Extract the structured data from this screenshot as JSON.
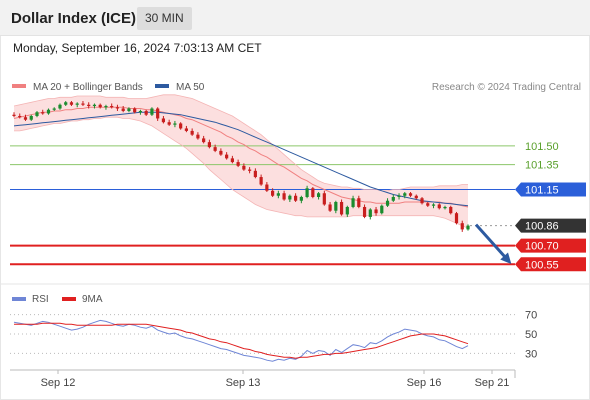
{
  "header": {
    "title": "Dollar Index (ICE)",
    "timeframe": "30 MIN"
  },
  "datetime": "Monday, September 16, 2024 7:03:13 AM CET",
  "legend": [
    {
      "label": "MA 20 + Bollinger Bands",
      "color": "#f08080"
    },
    {
      "label": "MA 50",
      "color": "#2d5aa0"
    }
  ],
  "credit": "Research © 2024 Trading Central",
  "rsi_legend": [
    {
      "label": "RSI",
      "color": "#6f86d6"
    },
    {
      "label": "9MA",
      "color": "#e02020"
    }
  ],
  "colors": {
    "bullish": "#1a8c2e",
    "bearish": "#c81e1e",
    "resistance": "#8cc66a",
    "pivot": "#2b5fd9",
    "support": "#e02020",
    "last": "#333333",
    "arrow": "#2d5aa0",
    "band": "#fbd9d9"
  },
  "chart_data": [
    {
      "type": "candlestick",
      "title": "",
      "ylim": [
        100.4,
        101.82
      ],
      "x_labels": [
        "Sep 12",
        "Sep 13",
        "Sep 16",
        "Sep 21"
      ],
      "levels": [
        {
          "value": 101.5,
          "label": "101.50",
          "kind": "resistance"
        },
        {
          "value": 101.35,
          "label": "101.35",
          "kind": "resistance"
        },
        {
          "value": 101.15,
          "label": "101.15",
          "kind": "pivot"
        },
        {
          "value": 100.86,
          "label": "100.86",
          "kind": "last"
        },
        {
          "value": 100.7,
          "label": "100.70",
          "kind": "support"
        },
        {
          "value": 100.55,
          "label": "100.55",
          "kind": "support"
        }
      ],
      "last_price": 100.86,
      "ohlc": [
        [
          101.75,
          101.77,
          101.73,
          101.74
        ],
        [
          101.74,
          101.76,
          101.72,
          101.73
        ],
        [
          101.73,
          101.75,
          101.7,
          101.71
        ],
        [
          101.71,
          101.75,
          101.7,
          101.74
        ],
        [
          101.74,
          101.78,
          101.73,
          101.77
        ],
        [
          101.77,
          101.79,
          101.75,
          101.76
        ],
        [
          101.76,
          101.8,
          101.75,
          101.79
        ],
        [
          101.79,
          101.81,
          101.78,
          101.8
        ],
        [
          101.8,
          101.84,
          101.79,
          101.83
        ],
        [
          101.83,
          101.86,
          101.82,
          101.85
        ],
        [
          101.85,
          101.86,
          101.82,
          101.83
        ],
        [
          101.83,
          101.85,
          101.81,
          101.84
        ],
        [
          101.84,
          101.86,
          101.82,
          101.83
        ],
        [
          101.83,
          101.85,
          101.8,
          101.82
        ],
        [
          101.82,
          101.84,
          101.8,
          101.83
        ],
        [
          101.83,
          101.84,
          101.8,
          101.81
        ],
        [
          101.81,
          101.83,
          101.79,
          101.82
        ],
        [
          101.82,
          101.84,
          101.8,
          101.81
        ],
        [
          101.81,
          101.83,
          101.78,
          101.8
        ],
        [
          101.8,
          101.82,
          101.77,
          101.78
        ],
        [
          101.78,
          101.81,
          101.77,
          101.8
        ],
        [
          101.8,
          101.81,
          101.76,
          101.77
        ],
        [
          101.77,
          101.79,
          101.75,
          101.78
        ],
        [
          101.78,
          101.79,
          101.74,
          101.75
        ],
        [
          101.75,
          101.81,
          101.74,
          101.8
        ],
        [
          101.8,
          101.81,
          101.7,
          101.72
        ],
        [
          101.72,
          101.74,
          101.68,
          101.69
        ],
        [
          101.69,
          101.71,
          101.66,
          101.67
        ],
        [
          101.67,
          101.7,
          101.65,
          101.68
        ],
        [
          101.68,
          101.69,
          101.63,
          101.64
        ],
        [
          101.64,
          101.66,
          101.61,
          101.62
        ],
        [
          101.62,
          101.64,
          101.58,
          101.59
        ],
        [
          101.59,
          101.61,
          101.55,
          101.56
        ],
        [
          101.56,
          101.58,
          101.52,
          101.53
        ],
        [
          101.53,
          101.55,
          101.48,
          101.49
        ],
        [
          101.49,
          101.51,
          101.45,
          101.46
        ],
        [
          101.46,
          101.48,
          101.42,
          101.43
        ],
        [
          101.43,
          101.45,
          101.39,
          101.4
        ],
        [
          101.4,
          101.42,
          101.36,
          101.37
        ],
        [
          101.37,
          101.39,
          101.33,
          101.34
        ],
        [
          101.34,
          101.36,
          101.3,
          101.31
        ],
        [
          101.31,
          101.33,
          101.28,
          101.3
        ],
        [
          101.3,
          101.32,
          101.24,
          101.25
        ],
        [
          101.25,
          101.27,
          101.18,
          101.19
        ],
        [
          101.19,
          101.21,
          101.13,
          101.14
        ],
        [
          101.14,
          101.16,
          101.09,
          101.1
        ],
        [
          101.1,
          101.14,
          101.08,
          101.12
        ],
        [
          101.12,
          101.14,
          101.06,
          101.07
        ],
        [
          101.07,
          101.11,
          101.05,
          101.1
        ],
        [
          101.1,
          101.12,
          101.05,
          101.06
        ],
        [
          101.06,
          101.1,
          101.04,
          101.09
        ],
        [
          101.09,
          101.18,
          101.08,
          101.16
        ],
        [
          101.16,
          101.17,
          101.08,
          101.09
        ],
        [
          101.09,
          101.13,
          101.07,
          101.12
        ],
        [
          101.12,
          101.14,
          101.02,
          101.03
        ],
        [
          101.03,
          101.05,
          100.97,
          100.98
        ],
        [
          100.98,
          101.06,
          100.96,
          101.05
        ],
        [
          101.05,
          101.07,
          100.94,
          100.95
        ],
        [
          100.95,
          101.02,
          100.93,
          101.01
        ],
        [
          101.01,
          101.1,
          101.0,
          101.08
        ],
        [
          101.08,
          101.1,
          101.0,
          101.01
        ],
        [
          101.01,
          101.03,
          100.92,
          100.93
        ],
        [
          100.93,
          101.0,
          100.91,
          100.99
        ],
        [
          100.99,
          101.01,
          100.94,
          100.96
        ],
        [
          100.96,
          101.03,
          100.95,
          101.02
        ],
        [
          101.02,
          101.08,
          101.01,
          101.06
        ],
        [
          101.06,
          101.11,
          101.05,
          101.09
        ],
        [
          101.09,
          101.12,
          101.07,
          101.1
        ],
        [
          101.1,
          101.13,
          101.08,
          101.12
        ],
        [
          101.12,
          101.13,
          101.09,
          101.1
        ],
        [
          101.1,
          101.11,
          101.07,
          101.08
        ],
        [
          101.08,
          101.09,
          101.03,
          101.04
        ],
        [
          101.04,
          101.05,
          101.01,
          101.02
        ],
        [
          101.02,
          101.04,
          101.0,
          101.03
        ],
        [
          101.03,
          101.04,
          100.99,
          101.0
        ],
        [
          101.0,
          101.02,
          100.99,
          101.01
        ],
        [
          101.01,
          101.02,
          100.95,
          100.96
        ],
        [
          100.96,
          100.97,
          100.87,
          100.88
        ],
        [
          100.88,
          100.9,
          100.81,
          100.83
        ],
        [
          100.83,
          100.87,
          100.82,
          100.86
        ]
      ],
      "ma20": [
        101.72,
        101.73,
        101.74,
        101.75,
        101.76,
        101.77,
        101.77,
        101.78,
        101.78,
        101.79,
        101.79,
        101.8,
        101.8,
        101.81,
        101.81,
        101.81,
        101.81,
        101.81,
        101.81,
        101.81,
        101.8,
        101.8,
        101.8,
        101.79,
        101.79,
        101.78,
        101.77,
        101.76,
        101.75,
        101.74,
        101.72,
        101.71,
        101.69,
        101.67,
        101.65,
        101.63,
        101.61,
        101.58,
        101.56,
        101.53,
        101.51,
        101.48,
        101.46,
        101.43,
        101.41,
        101.38,
        101.35,
        101.33,
        101.3,
        101.27,
        101.24,
        101.22,
        101.19,
        101.17,
        101.15,
        101.13,
        101.11,
        101.09,
        101.08,
        101.07,
        101.06,
        101.05,
        101.05,
        101.04,
        101.04,
        101.04,
        101.04,
        101.04,
        101.05,
        101.05,
        101.05,
        101.05,
        101.05,
        101.05,
        101.05,
        101.04,
        101.04,
        101.03,
        101.02,
        101.01
      ],
      "bb_upper": [
        101.82,
        101.83,
        101.84,
        101.85,
        101.86,
        101.87,
        101.88,
        101.88,
        101.89,
        101.89,
        101.89,
        101.9,
        101.9,
        101.9,
        101.9,
        101.9,
        101.89,
        101.89,
        101.89,
        101.89,
        101.88,
        101.88,
        101.88,
        101.88,
        101.89,
        101.9,
        101.91,
        101.91,
        101.91,
        101.9,
        101.89,
        101.88,
        101.86,
        101.84,
        101.82,
        101.8,
        101.78,
        101.76,
        101.74,
        101.71,
        101.68,
        101.65,
        101.62,
        101.59,
        101.55,
        101.51,
        101.47,
        101.43,
        101.39,
        101.35,
        101.31,
        101.28,
        101.25,
        101.22,
        101.2,
        101.19,
        101.18,
        101.17,
        101.17,
        101.16,
        101.16,
        101.15,
        101.15,
        101.15,
        101.14,
        101.14,
        101.15,
        101.15,
        101.16,
        101.17,
        101.17,
        101.17,
        101.17,
        101.17,
        101.18,
        101.18,
        101.18,
        101.18,
        101.19,
        101.19
      ],
      "bb_lower": [
        101.62,
        101.62,
        101.63,
        101.64,
        101.65,
        101.66,
        101.67,
        101.68,
        101.68,
        101.69,
        101.7,
        101.7,
        101.71,
        101.71,
        101.72,
        101.72,
        101.73,
        101.73,
        101.73,
        101.72,
        101.72,
        101.71,
        101.7,
        101.68,
        101.66,
        101.63,
        101.6,
        101.57,
        101.54,
        101.51,
        101.48,
        101.44,
        101.4,
        101.36,
        101.31,
        101.27,
        101.23,
        101.19,
        101.15,
        101.12,
        101.09,
        101.06,
        101.03,
        101.01,
        100.99,
        100.98,
        100.97,
        100.96,
        100.95,
        100.94,
        100.94,
        100.93,
        100.93,
        100.93,
        100.93,
        100.93,
        100.93,
        100.93,
        100.93,
        100.94,
        100.94,
        100.94,
        100.94,
        100.94,
        100.94,
        100.94,
        100.94,
        100.94,
        100.94,
        100.94,
        100.94,
        100.94,
        100.94,
        100.94,
        100.93,
        100.92,
        100.9,
        100.88,
        100.86,
        100.84
      ],
      "ma50": [
        101.66,
        101.665,
        101.67,
        101.675,
        101.68,
        101.685,
        101.69,
        101.695,
        101.7,
        101.705,
        101.71,
        101.715,
        101.72,
        101.725,
        101.73,
        101.735,
        101.74,
        101.745,
        101.75,
        101.755,
        101.76,
        101.765,
        101.77,
        101.77,
        101.77,
        101.77,
        101.765,
        101.76,
        101.755,
        101.75,
        101.74,
        101.73,
        101.72,
        101.71,
        101.7,
        101.69,
        101.675,
        101.66,
        101.645,
        101.63,
        101.61,
        101.59,
        101.57,
        101.55,
        101.53,
        101.51,
        101.49,
        101.47,
        101.45,
        101.43,
        101.41,
        101.39,
        101.37,
        101.35,
        101.33,
        101.31,
        101.29,
        101.27,
        101.25,
        101.23,
        101.21,
        101.19,
        101.17,
        101.155,
        101.14,
        101.125,
        101.11,
        101.1,
        101.09,
        101.08,
        101.07,
        101.06,
        101.055,
        101.05,
        101.045,
        101.04,
        101.035,
        101.03,
        101.025,
        101.02
      ],
      "forecast_arrow": {
        "from": 100.86,
        "to": 100.55
      }
    },
    {
      "type": "line",
      "title": "",
      "ylim": [
        15,
        85
      ],
      "yticks": [
        70,
        50,
        30
      ],
      "series": [
        {
          "name": "RSI",
          "values": [
            62,
            61,
            60,
            59,
            61,
            63,
            62,
            60,
            58,
            56,
            54,
            55,
            57,
            60,
            62,
            64,
            63,
            61,
            59,
            58,
            60,
            59,
            57,
            56,
            58,
            54,
            52,
            50,
            51,
            48,
            46,
            45,
            43,
            41,
            39,
            37,
            35,
            34,
            32,
            30,
            28,
            27,
            26,
            25,
            23,
            22,
            24,
            23,
            25,
            24,
            27,
            33,
            30,
            33,
            32,
            28,
            34,
            31,
            35,
            39,
            38,
            36,
            41,
            40,
            43,
            47,
            50,
            52,
            55,
            54,
            53,
            50,
            48,
            47,
            44,
            43,
            40,
            37,
            35,
            38
          ]
        },
        {
          "name": "9MA",
          "values": [
            60,
            60,
            60,
            60,
            60,
            61,
            61,
            61,
            61,
            60,
            60,
            59,
            59,
            59,
            59,
            59,
            59,
            59,
            60,
            60,
            60,
            60,
            60,
            60,
            59,
            58,
            57,
            56,
            55,
            54,
            52,
            51,
            49,
            47,
            45,
            44,
            42,
            41,
            39,
            37,
            35,
            34,
            32,
            31,
            29,
            28,
            27,
            26,
            26,
            25,
            26,
            26,
            27,
            28,
            29,
            29,
            30,
            30,
            31,
            32,
            33,
            34,
            35,
            36,
            38,
            40,
            42,
            44,
            46,
            48,
            49,
            50,
            50,
            50,
            49,
            48,
            46,
            44,
            42,
            40
          ]
        }
      ]
    }
  ]
}
